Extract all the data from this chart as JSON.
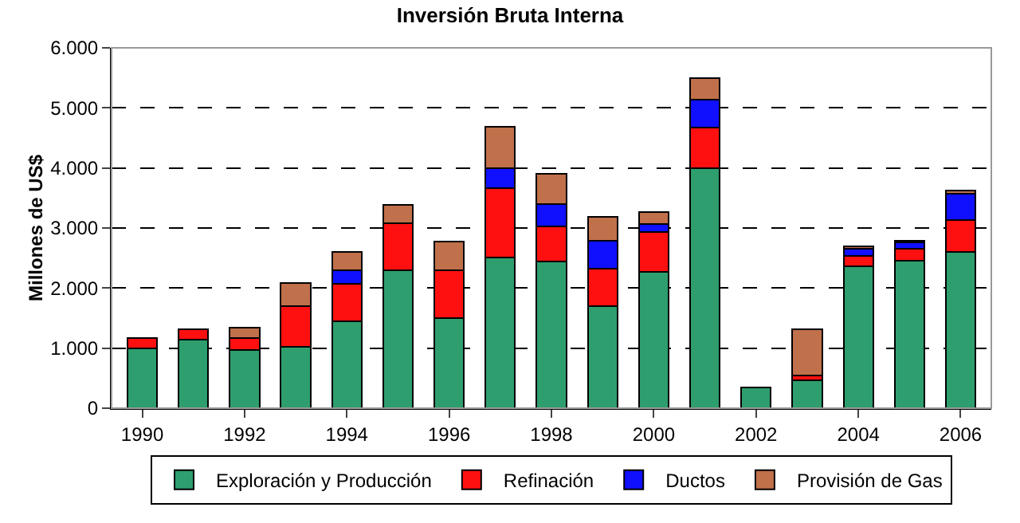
{
  "chart_data": {
    "type": "bar",
    "title": "Inversión Bruta Interna",
    "ylabel": "Millones de US$",
    "categories": [
      "1990",
      null,
      "1992",
      null,
      "1994",
      null,
      "1996",
      null,
      "1998",
      null,
      "2000",
      null,
      "2002",
      null,
      "2004",
      null,
      "2006"
    ],
    "stacked": true,
    "series": [
      {
        "name": "Exploración y Producción",
        "color": "#2e9e6e",
        "values": [
          1000,
          1140,
          970,
          1020,
          1450,
          2290,
          1500,
          2510,
          2440,
          1700,
          2270,
          4000,
          350,
          460,
          2360,
          2460,
          2600
        ]
      },
      {
        "name": "Refinación",
        "color": "#ff1010",
        "values": [
          170,
          170,
          200,
          680,
          620,
          790,
          790,
          1160,
          590,
          620,
          670,
          670,
          null,
          80,
          180,
          190,
          530
        ]
      },
      {
        "name": "Ductos",
        "color": "#1010ff",
        "values": [
          null,
          null,
          null,
          null,
          220,
          null,
          null,
          330,
          370,
          470,
          120,
          470,
          null,
          null,
          120,
          110,
          440
        ]
      },
      {
        "name": "Provisión de Gas",
        "color": "#c0704a",
        "values": [
          null,
          null,
          170,
          390,
          310,
          300,
          480,
          690,
          500,
          400,
          210,
          350,
          null,
          770,
          30,
          30,
          60
        ]
      }
    ],
    "ylim": [
      0,
      6000
    ],
    "yticks": [
      0,
      {
        "value": 1000,
        "label": "1.000"
      },
      {
        "value": 2000,
        "label": "2.000"
      },
      {
        "value": 3000,
        "label": "3.000"
      },
      {
        "value": 4000,
        "label": "4.000"
      },
      {
        "value": 5000,
        "label": "5.000"
      },
      {
        "value": 6000,
        "label": "6.000"
      }
    ],
    "grid": "y",
    "legend": "bottom"
  }
}
